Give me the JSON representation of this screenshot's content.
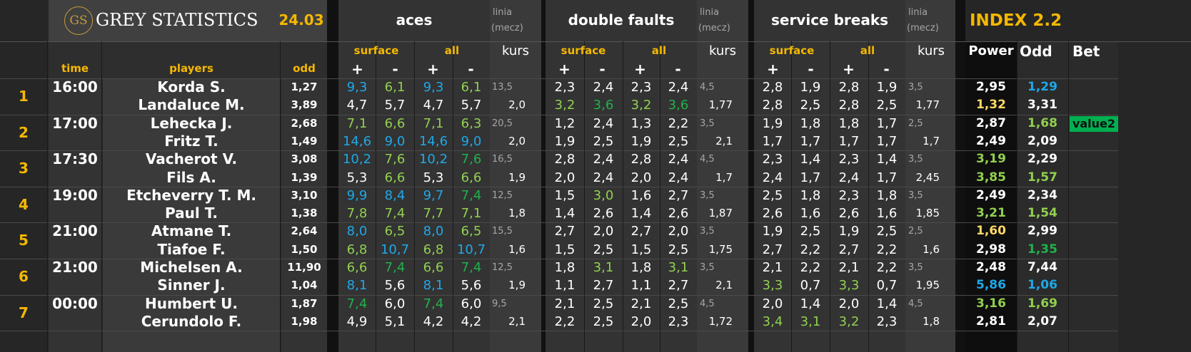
{
  "header": {
    "logo_mark": "GS",
    "brand": "GREY STATISTICS",
    "date": "24.03",
    "aces": "aces",
    "double_faults": "double faults",
    "service_breaks": "service breaks",
    "linia": "linia",
    "mecz": "(mecz)",
    "index": "INDEX 2.2",
    "surface": "surface",
    "all": "all",
    "kurs": "kurs",
    "plus": "+",
    "minus": "-",
    "power": "Power",
    "odd_col": "Odd",
    "bet": "Bet",
    "time": "time",
    "players": "players",
    "odd": "odd"
  },
  "colors": {
    "gold": "#f5b800",
    "blue": "#1fa8e8",
    "green": "#22b14c",
    "light_green": "#92d050",
    "yellow": "#ffd966",
    "value_badge": "#00b050"
  },
  "matches": [
    {
      "num": "1",
      "time": "16:00",
      "p": [
        {
          "name": "Korda S.",
          "odd": "1,27",
          "aces": [
            [
              "9,3",
              "b"
            ],
            [
              "6,1",
              "lg"
            ],
            [
              "9,3",
              "b"
            ],
            [
              "6,1",
              "lg"
            ]
          ],
          "aces_kurs": "",
          "df": [
            [
              "2,3",
              "w"
            ],
            [
              "2,4",
              "w"
            ],
            [
              "2,3",
              "w"
            ],
            [
              "2,4",
              "w"
            ]
          ],
          "df_kurs": "",
          "sb": [
            [
              "2,8",
              "w"
            ],
            [
              "1,9",
              "w"
            ],
            [
              "2,8",
              "w"
            ],
            [
              "1,9",
              "w"
            ]
          ],
          "sb_kurs": "",
          "power": [
            "2,95",
            "w"
          ],
          "iodd": [
            "1,29",
            "b"
          ],
          "bet": ""
        },
        {
          "name": "Landaluce M.",
          "odd": "3,89",
          "aces": [
            [
              "4,7",
              "w"
            ],
            [
              "5,7",
              "w"
            ],
            [
              "4,7",
              "w"
            ],
            [
              "5,7",
              "w"
            ]
          ],
          "aces_kurs": "2,0",
          "df": [
            [
              "3,2",
              "lg"
            ],
            [
              "3,6",
              "g"
            ],
            [
              "3,2",
              "lg"
            ],
            [
              "3,6",
              "g"
            ]
          ],
          "df_kurs": "1,77",
          "sb": [
            [
              "2,8",
              "w"
            ],
            [
              "2,5",
              "w"
            ],
            [
              "2,8",
              "w"
            ],
            [
              "2,5",
              "w"
            ]
          ],
          "sb_kurs": "1,77",
          "power": [
            "1,32",
            "y"
          ],
          "iodd": [
            "3,31",
            "w"
          ],
          "bet": ""
        }
      ],
      "aces_line": "13,5",
      "df_line": "4,5",
      "sb_line": "3,5"
    },
    {
      "num": "2",
      "time": "17:00",
      "p": [
        {
          "name": "Lehecka J.",
          "odd": "2,68",
          "aces": [
            [
              "7,1",
              "lg"
            ],
            [
              "6,6",
              "lg"
            ],
            [
              "7,1",
              "lg"
            ],
            [
              "6,3",
              "lg"
            ]
          ],
          "aces_kurs": "",
          "df": [
            [
              "1,2",
              "w"
            ],
            [
              "2,4",
              "w"
            ],
            [
              "1,3",
              "w"
            ],
            [
              "2,2",
              "w"
            ]
          ],
          "df_kurs": "",
          "sb": [
            [
              "1,9",
              "w"
            ],
            [
              "1,8",
              "w"
            ],
            [
              "1,8",
              "w"
            ],
            [
              "1,7",
              "w"
            ]
          ],
          "sb_kurs": "",
          "power": [
            "2,87",
            "w"
          ],
          "iodd": [
            "1,68",
            "lg"
          ],
          "bet": "value2"
        },
        {
          "name": "Fritz T.",
          "odd": "1,49",
          "aces": [
            [
              "14,6",
              "b"
            ],
            [
              "9,0",
              "b"
            ],
            [
              "14,6",
              "b"
            ],
            [
              "9,0",
              "b"
            ]
          ],
          "aces_kurs": "2,0",
          "df": [
            [
              "1,9",
              "w"
            ],
            [
              "2,5",
              "w"
            ],
            [
              "1,9",
              "w"
            ],
            [
              "2,5",
              "w"
            ]
          ],
          "df_kurs": "2,1",
          "sb": [
            [
              "1,7",
              "w"
            ],
            [
              "1,7",
              "w"
            ],
            [
              "1,7",
              "w"
            ],
            [
              "1,7",
              "w"
            ]
          ],
          "sb_kurs": "1,7",
          "power": [
            "2,49",
            "w"
          ],
          "iodd": [
            "2,09",
            "w"
          ],
          "bet": ""
        }
      ],
      "aces_line": "20,5",
      "df_line": "3,5",
      "sb_line": "2,5"
    },
    {
      "num": "3",
      "time": "17:30",
      "p": [
        {
          "name": "Vacherot V.",
          "odd": "3,08",
          "aces": [
            [
              "10,2",
              "b"
            ],
            [
              "7,6",
              "lg"
            ],
            [
              "10,2",
              "b"
            ],
            [
              "7,6",
              "g"
            ]
          ],
          "aces_kurs": "",
          "df": [
            [
              "2,8",
              "w"
            ],
            [
              "2,4",
              "w"
            ],
            [
              "2,8",
              "w"
            ],
            [
              "2,4",
              "w"
            ]
          ],
          "df_kurs": "",
          "sb": [
            [
              "2,3",
              "w"
            ],
            [
              "1,4",
              "w"
            ],
            [
              "2,3",
              "w"
            ],
            [
              "1,4",
              "w"
            ]
          ],
          "sb_kurs": "",
          "power": [
            "3,19",
            "lg"
          ],
          "iodd": [
            "2,29",
            "w"
          ],
          "bet": ""
        },
        {
          "name": "Fils A.",
          "odd": "1,39",
          "aces": [
            [
              "5,3",
              "w"
            ],
            [
              "6,6",
              "lg"
            ],
            [
              "5,3",
              "w"
            ],
            [
              "6,6",
              "lg"
            ]
          ],
          "aces_kurs": "1,9",
          "df": [
            [
              "2,0",
              "w"
            ],
            [
              "2,4",
              "w"
            ],
            [
              "2,0",
              "w"
            ],
            [
              "2,4",
              "w"
            ]
          ],
          "df_kurs": "1,7",
          "sb": [
            [
              "2,4",
              "w"
            ],
            [
              "1,7",
              "w"
            ],
            [
              "2,4",
              "w"
            ],
            [
              "1,7",
              "w"
            ]
          ],
          "sb_kurs": "2,45",
          "power": [
            "3,85",
            "lg"
          ],
          "iodd": [
            "1,57",
            "lg"
          ],
          "bet": ""
        }
      ],
      "aces_line": "16,5",
      "df_line": "4,5",
      "sb_line": "3,5"
    },
    {
      "num": "4",
      "time": "19:00",
      "p": [
        {
          "name": "Etcheverry T. M.",
          "odd": "3,10",
          "aces": [
            [
              "9,9",
              "b"
            ],
            [
              "8,4",
              "b"
            ],
            [
              "9,7",
              "b"
            ],
            [
              "7,4",
              "g"
            ]
          ],
          "aces_kurs": "",
          "df": [
            [
              "1,5",
              "w"
            ],
            [
              "3,0",
              "lg"
            ],
            [
              "1,6",
              "w"
            ],
            [
              "2,7",
              "w"
            ]
          ],
          "df_kurs": "",
          "sb": [
            [
              "2,5",
              "w"
            ],
            [
              "1,8",
              "w"
            ],
            [
              "2,3",
              "w"
            ],
            [
              "1,8",
              "w"
            ]
          ],
          "sb_kurs": "",
          "power": [
            "2,49",
            "w"
          ],
          "iodd": [
            "2,34",
            "w"
          ],
          "bet": ""
        },
        {
          "name": "Paul T.",
          "odd": "1,38",
          "aces": [
            [
              "7,8",
              "lg"
            ],
            [
              "7,4",
              "lg"
            ],
            [
              "7,7",
              "lg"
            ],
            [
              "7,1",
              "lg"
            ]
          ],
          "aces_kurs": "1,8",
          "df": [
            [
              "1,4",
              "w"
            ],
            [
              "2,6",
              "w"
            ],
            [
              "1,4",
              "w"
            ],
            [
              "2,6",
              "w"
            ]
          ],
          "df_kurs": "1,87",
          "sb": [
            [
              "2,6",
              "w"
            ],
            [
              "1,6",
              "w"
            ],
            [
              "2,6",
              "w"
            ],
            [
              "1,6",
              "w"
            ]
          ],
          "sb_kurs": "1,85",
          "power": [
            "3,21",
            "lg"
          ],
          "iodd": [
            "1,54",
            "lg"
          ],
          "bet": ""
        }
      ],
      "aces_line": "12,5",
      "df_line": "3,5",
      "sb_line": "3,5"
    },
    {
      "num": "5",
      "time": "21:00",
      "p": [
        {
          "name": "Atmane T.",
          "odd": "2,64",
          "aces": [
            [
              "8,0",
              "b"
            ],
            [
              "6,5",
              "lg"
            ],
            [
              "8,0",
              "b"
            ],
            [
              "6,5",
              "lg"
            ]
          ],
          "aces_kurs": "",
          "df": [
            [
              "2,7",
              "w"
            ],
            [
              "2,0",
              "w"
            ],
            [
              "2,7",
              "w"
            ],
            [
              "2,0",
              "w"
            ]
          ],
          "df_kurs": "",
          "sb": [
            [
              "1,9",
              "w"
            ],
            [
              "2,5",
              "w"
            ],
            [
              "1,9",
              "w"
            ],
            [
              "2,5",
              "w"
            ]
          ],
          "sb_kurs": "",
          "power": [
            "1,60",
            "y"
          ],
          "iodd": [
            "2,99",
            "w"
          ],
          "bet": ""
        },
        {
          "name": "Tiafoe F.",
          "odd": "1,50",
          "aces": [
            [
              "6,8",
              "lg"
            ],
            [
              "10,7",
              "b"
            ],
            [
              "6,8",
              "lg"
            ],
            [
              "10,7",
              "b"
            ]
          ],
          "aces_kurs": "1,6",
          "df": [
            [
              "1,5",
              "w"
            ],
            [
              "2,5",
              "w"
            ],
            [
              "1,5",
              "w"
            ],
            [
              "2,5",
              "w"
            ]
          ],
          "df_kurs": "1,75",
          "sb": [
            [
              "2,7",
              "w"
            ],
            [
              "2,2",
              "w"
            ],
            [
              "2,7",
              "w"
            ],
            [
              "2,2",
              "w"
            ]
          ],
          "sb_kurs": "1,6",
          "power": [
            "2,98",
            "w"
          ],
          "iodd": [
            "1,35",
            "g"
          ],
          "bet": ""
        }
      ],
      "aces_line": "15,5",
      "df_line": "3,5",
      "sb_line": "2,5"
    },
    {
      "num": "6",
      "time": "21:00",
      "p": [
        {
          "name": "Michelsen A.",
          "odd": "11,90",
          "aces": [
            [
              "6,6",
              "lg"
            ],
            [
              "7,4",
              "g"
            ],
            [
              "6,6",
              "lg"
            ],
            [
              "7,4",
              "g"
            ]
          ],
          "aces_kurs": "",
          "df": [
            [
              "1,8",
              "w"
            ],
            [
              "3,1",
              "lg"
            ],
            [
              "1,8",
              "w"
            ],
            [
              "3,1",
              "lg"
            ]
          ],
          "df_kurs": "",
          "sb": [
            [
              "2,1",
              "w"
            ],
            [
              "2,2",
              "w"
            ],
            [
              "2,1",
              "w"
            ],
            [
              "2,2",
              "w"
            ]
          ],
          "sb_kurs": "",
          "power": [
            "2,48",
            "w"
          ],
          "iodd": [
            "7,44",
            "w"
          ],
          "bet": ""
        },
        {
          "name": "Sinner J.",
          "odd": "1,04",
          "aces": [
            [
              "8,1",
              "b"
            ],
            [
              "5,6",
              "w"
            ],
            [
              "8,1",
              "b"
            ],
            [
              "5,6",
              "w"
            ]
          ],
          "aces_kurs": "1,9",
          "df": [
            [
              "1,1",
              "w"
            ],
            [
              "2,7",
              "w"
            ],
            [
              "1,1",
              "w"
            ],
            [
              "2,7",
              "w"
            ]
          ],
          "df_kurs": "2,1",
          "sb": [
            [
              "3,3",
              "lg"
            ],
            [
              "0,7",
              "w"
            ],
            [
              "3,3",
              "lg"
            ],
            [
              "0,7",
              "w"
            ]
          ],
          "sb_kurs": "1,95",
          "power": [
            "5,86",
            "b"
          ],
          "iodd": [
            "1,06",
            "b"
          ],
          "bet": ""
        }
      ],
      "aces_line": "12,5",
      "df_line": "3,5",
      "sb_line": "3,5"
    },
    {
      "num": "7",
      "time": "00:00",
      "p": [
        {
          "name": "Humbert U.",
          "odd": "1,87",
          "aces": [
            [
              "7,4",
              "g"
            ],
            [
              "6,0",
              "w"
            ],
            [
              "7,4",
              "g"
            ],
            [
              "6,0",
              "w"
            ]
          ],
          "aces_kurs": "",
          "df": [
            [
              "2,1",
              "w"
            ],
            [
              "2,5",
              "w"
            ],
            [
              "2,1",
              "w"
            ],
            [
              "2,5",
              "w"
            ]
          ],
          "df_kurs": "",
          "sb": [
            [
              "2,0",
              "w"
            ],
            [
              "1,4",
              "w"
            ],
            [
              "2,0",
              "w"
            ],
            [
              "1,4",
              "w"
            ]
          ],
          "sb_kurs": "",
          "power": [
            "3,16",
            "lg"
          ],
          "iodd": [
            "1,69",
            "lg"
          ],
          "bet": ""
        },
        {
          "name": "Cerundolo F.",
          "odd": "1,98",
          "aces": [
            [
              "4,9",
              "w"
            ],
            [
              "5,1",
              "w"
            ],
            [
              "4,2",
              "w"
            ],
            [
              "4,2",
              "w"
            ]
          ],
          "aces_kurs": "2,1",
          "df": [
            [
              "2,2",
              "w"
            ],
            [
              "2,5",
              "w"
            ],
            [
              "2,0",
              "w"
            ],
            [
              "2,3",
              "w"
            ]
          ],
          "df_kurs": "1,72",
          "sb": [
            [
              "3,4",
              "lg"
            ],
            [
              "3,1",
              "lg"
            ],
            [
              "3,2",
              "lg"
            ],
            [
              "2,3",
              "w"
            ]
          ],
          "sb_kurs": "1,8",
          "power": [
            "2,81",
            "w"
          ],
          "iodd": [
            "2,07",
            "w"
          ],
          "bet": ""
        }
      ],
      "aces_line": "9,5",
      "df_line": "4,5",
      "sb_line": "4,5"
    }
  ]
}
